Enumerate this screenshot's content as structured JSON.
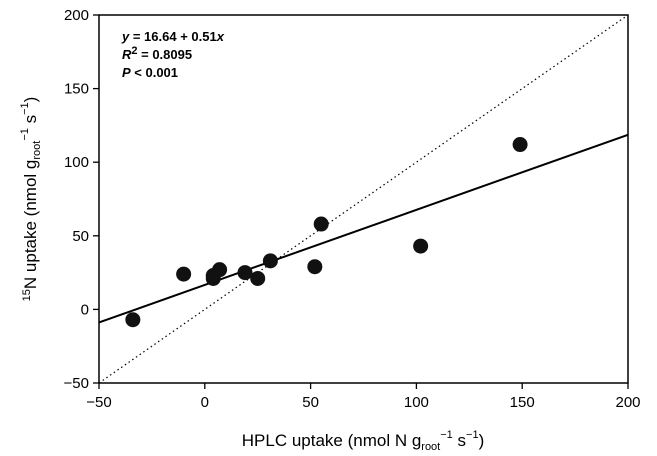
{
  "chart_data": {
    "type": "scatter",
    "xlabel": {
      "pre": "HPLC uptake (nmol N g",
      "sub": "root",
      "sup1": "−1",
      "mid": " s",
      "sup2": "−1",
      "post": ")"
    },
    "ylabel": {
      "sup0": "15",
      "pre": "N uptake (nmol g",
      "sub": "root",
      "sup1": "−1",
      "mid": " s",
      "sup2": "−1",
      "post": ")"
    },
    "xlim": [
      -50,
      200
    ],
    "ylim": [
      -50,
      200
    ],
    "xticks": [
      -50,
      0,
      50,
      100,
      150,
      200
    ],
    "yticks": [
      -50,
      0,
      50,
      100,
      150,
      200
    ],
    "xtick_labels": [
      "−50",
      "0",
      "50",
      "100",
      "150",
      "200"
    ],
    "ytick_labels": [
      "−50",
      "0",
      "50",
      "100",
      "150",
      "200"
    ],
    "grid": false,
    "points": [
      {
        "x": -34,
        "y": -7
      },
      {
        "x": -10,
        "y": 24
      },
      {
        "x": 4,
        "y": 21
      },
      {
        "x": 4,
        "y": 23
      },
      {
        "x": 7,
        "y": 27
      },
      {
        "x": 19,
        "y": 25
      },
      {
        "x": 25,
        "y": 21
      },
      {
        "x": 31,
        "y": 33
      },
      {
        "x": 52,
        "y": 29
      },
      {
        "x": 55,
        "y": 58
      },
      {
        "x": 102,
        "y": 43
      },
      {
        "x": 149,
        "y": 112
      }
    ],
    "regression": {
      "intercept": 16.64,
      "slope": 0.51,
      "style": "solid"
    },
    "reference_line": {
      "slope": 1,
      "intercept": 0,
      "style": "dotted"
    },
    "annotation": {
      "equation": {
        "y": "y",
        "eq": " = 16.64 + 0.51",
        "x": "x"
      },
      "r2": {
        "r": "R",
        "sup": "2",
        "rest": " = 0.8095"
      },
      "p": {
        "p": "P",
        "rest": " < 0.001"
      }
    }
  }
}
